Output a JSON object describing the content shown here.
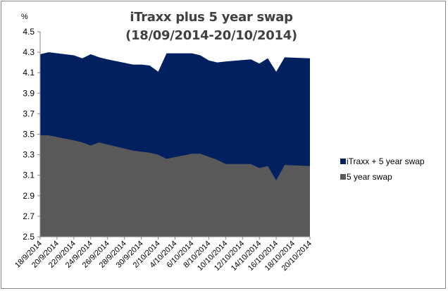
{
  "chart_data": {
    "type": "area",
    "title": "iTraxx plus 5 year swap",
    "subtitle": "(18/09/2014-20/10/2014)",
    "ylabel": "%",
    "xlabel": "",
    "ylim": [
      2.5,
      4.5
    ],
    "yticks": [
      "2.5",
      "2.7",
      "2.9",
      "3.1",
      "3.3",
      "3.5",
      "3.7",
      "3.9",
      "4.1",
      "4.3",
      "4.5"
    ],
    "xtick_labels": [
      "18/9/2014",
      "20/9/2014",
      "22/9/2014",
      "24/9/2014",
      "26/9/2014",
      "28/9/2014",
      "30/9/2014",
      "2/10/2014",
      "4/10/2014",
      "6/10/2014",
      "8/10/2014",
      "10/10/2014",
      "12/10/2014",
      "14/10/2014",
      "16/10/2014",
      "18/10/2014",
      "20/10/2014"
    ],
    "grid": false,
    "legend_position": "right",
    "x_days": [
      0,
      1,
      4,
      5,
      6,
      7,
      8,
      11,
      12,
      13,
      14,
      15,
      18,
      19,
      20,
      21,
      22,
      25,
      26,
      27,
      28,
      29,
      32
    ],
    "x": [
      "18/9/2014",
      "19/9/2014",
      "22/9/2014",
      "23/9/2014",
      "24/9/2014",
      "25/9/2014",
      "26/9/2014",
      "29/9/2014",
      "30/9/2014",
      "1/10/2014",
      "2/10/2014",
      "3/10/2014",
      "6/10/2014",
      "7/10/2014",
      "8/10/2014",
      "9/10/2014",
      "10/10/2014",
      "13/10/2014",
      "14/10/2014",
      "15/10/2014",
      "16/10/2014",
      "17/10/2014",
      "20/10/2014"
    ],
    "series": [
      {
        "name": "iTraxx + 5 year swap",
        "color": "#002060",
        "values": [
          4.28,
          4.3,
          4.27,
          4.24,
          4.28,
          4.25,
          4.23,
          4.18,
          4.18,
          4.17,
          4.11,
          4.29,
          4.29,
          4.27,
          4.22,
          4.2,
          4.21,
          4.23,
          4.19,
          4.24,
          4.11,
          4.25,
          4.24
        ]
      },
      {
        "name": "5 year swap",
        "color": "#595959",
        "values": [
          3.49,
          3.49,
          3.44,
          3.42,
          3.39,
          3.42,
          3.4,
          3.34,
          3.33,
          3.32,
          3.3,
          3.26,
          3.31,
          3.31,
          3.28,
          3.25,
          3.21,
          3.21,
          3.17,
          3.19,
          3.05,
          3.2,
          3.19
        ]
      }
    ]
  }
}
